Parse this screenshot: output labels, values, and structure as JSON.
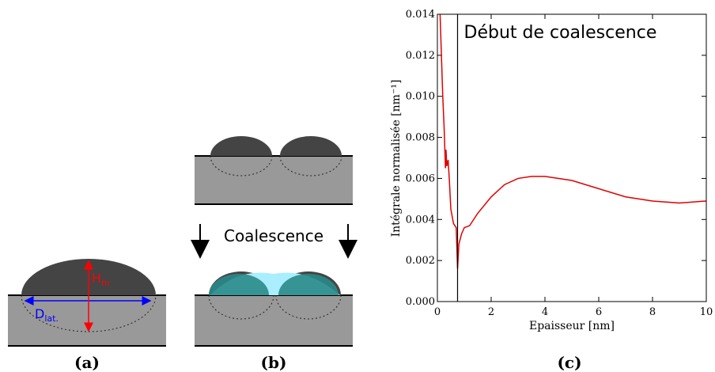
{
  "panels": {
    "a": {
      "caption": "(a)",
      "height_label": {
        "main": "H",
        "sub": "m"
      },
      "width_label": {
        "main": "D",
        "sub": "lat."
      }
    },
    "b": {
      "caption": "(b)",
      "arrow_label": "Coalescence"
    },
    "c": {
      "caption": "(c)"
    }
  },
  "chart_data": {
    "type": "line",
    "xlabel": "Epaisseur [nm]",
    "ylabel": "Intégrale normalisée [nm⁻¹]",
    "annotation": {
      "text": "Début de coalescence",
      "x": 0.75
    },
    "x": [
      0.1,
      0.15,
      0.2,
      0.25,
      0.3,
      0.32,
      0.35,
      0.4,
      0.45,
      0.5,
      0.6,
      0.7,
      0.75,
      0.8,
      0.9,
      1.0,
      1.2,
      1.5,
      2,
      2.5,
      3,
      3.5,
      4,
      5,
      6,
      7,
      8,
      9,
      10
    ],
    "series": [
      {
        "color": "#e00000",
        "values": [
          0.014,
          0.012,
          0.01,
          0.0085,
          0.0065,
          0.0074,
          0.0066,
          0.0069,
          0.0058,
          0.0045,
          0.0038,
          0.0036,
          0.0016,
          0.0028,
          0.0033,
          0.0036,
          0.0037,
          0.0043,
          0.0051,
          0.0057,
          0.006,
          0.0061,
          0.0061,
          0.0059,
          0.0055,
          0.0051,
          0.0049,
          0.0048,
          0.0049
        ]
      }
    ],
    "xlim": [
      0,
      10
    ],
    "xticks": [
      0,
      2,
      4,
      6,
      8,
      10
    ],
    "ylim": [
      0,
      0.014
    ],
    "yticks": [
      {
        "value": 0,
        "label": "0.000"
      },
      0.002,
      0.004,
      0.006,
      0.008,
      {
        "value": 0.01,
        "label": "0.010"
      },
      0.012,
      0.014
    ]
  }
}
